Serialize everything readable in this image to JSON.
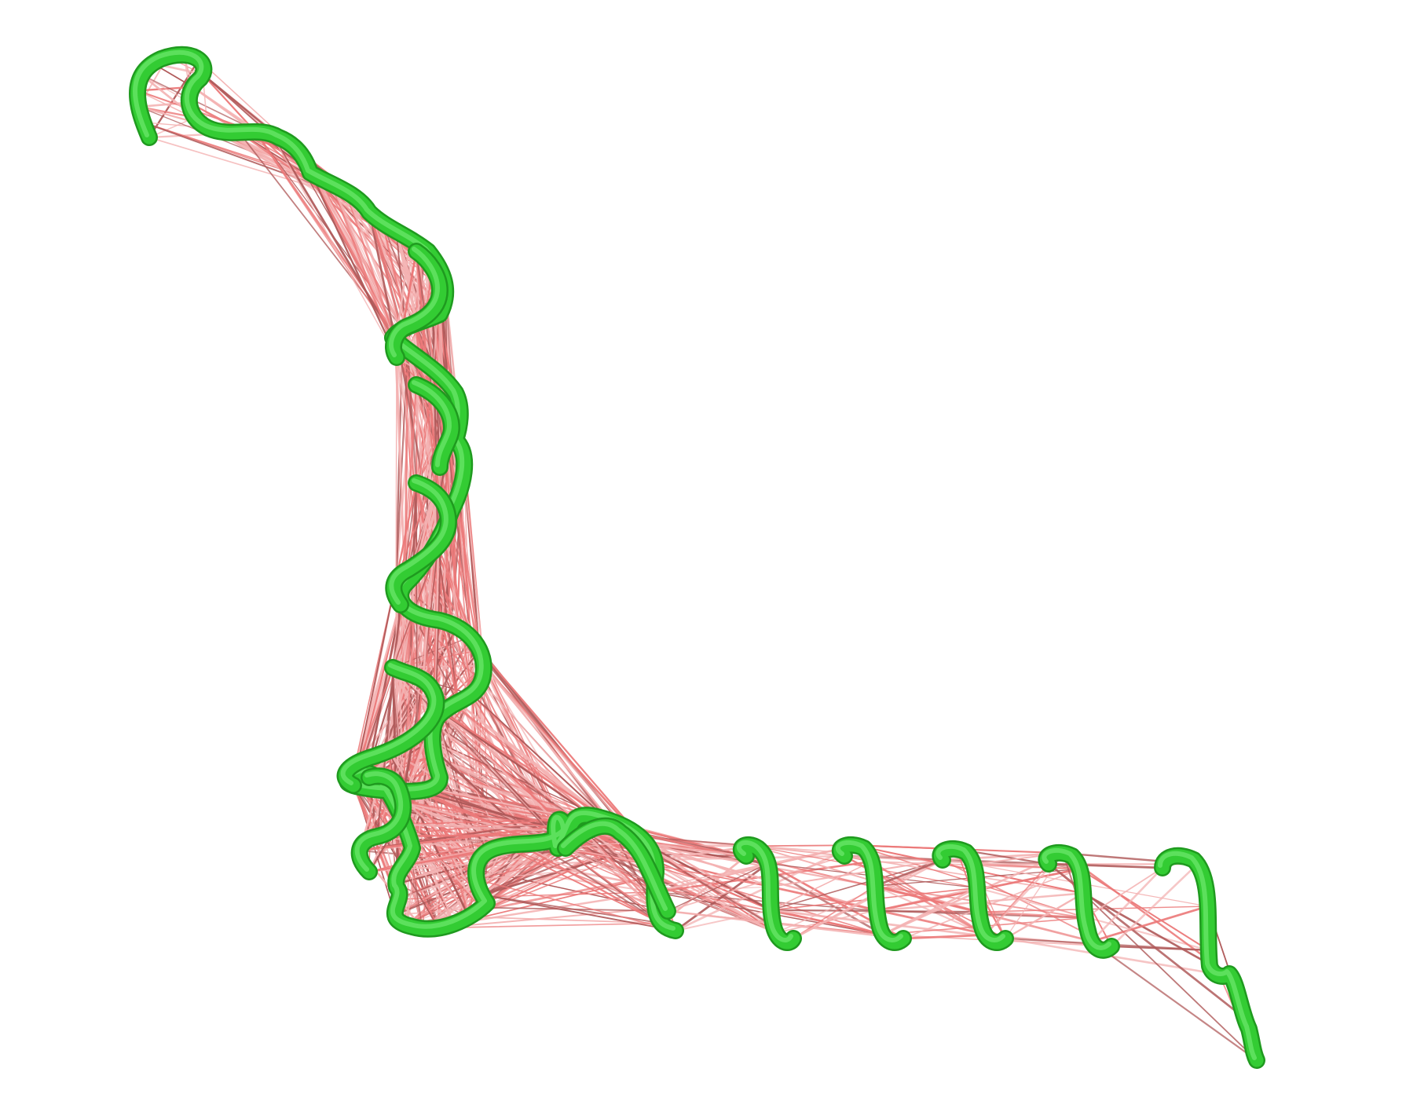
{
  "scene": {
    "background": "#ffffff",
    "colors": {
      "backbone": "#33cc33",
      "backbone_highlight": "#7ef07e",
      "backbone_shadow": "#1f9a1f",
      "contact_light": "#f4b3b3",
      "contact_mid": "#ec7a7a",
      "contact_dark": "#b05a5a"
    },
    "description_icon": "protein-helix-contact-map-icon"
  }
}
